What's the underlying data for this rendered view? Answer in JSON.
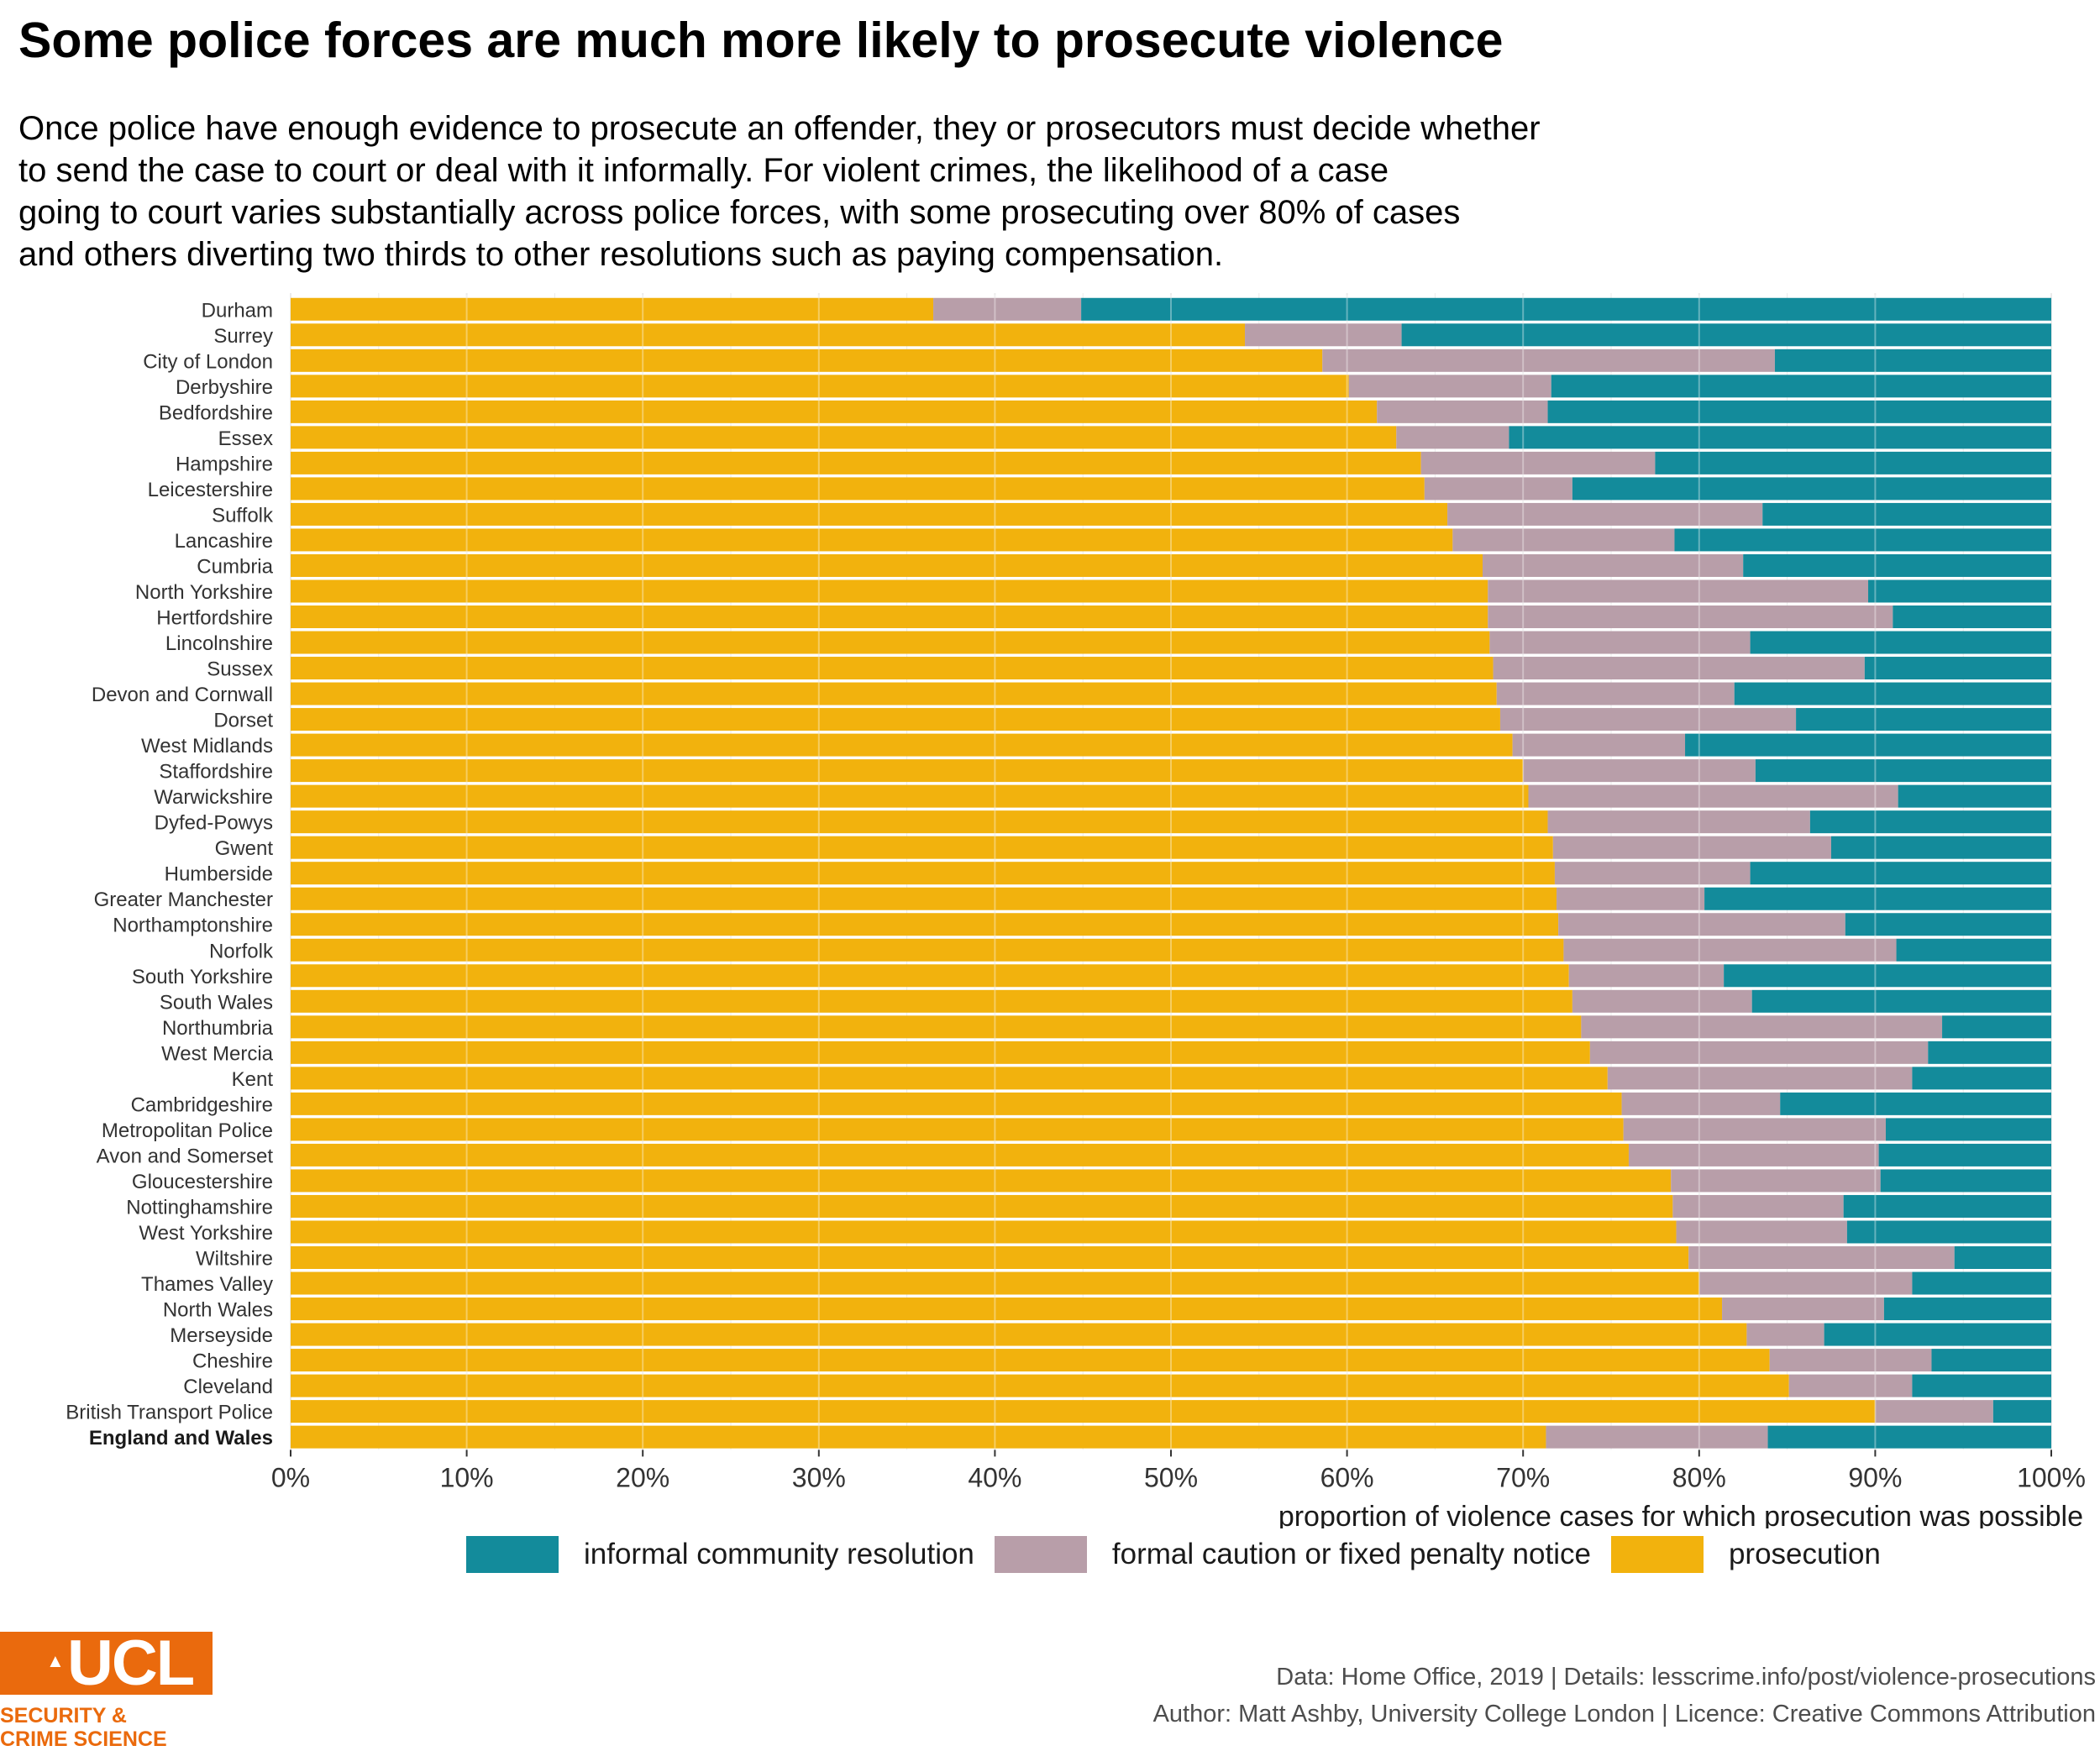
{
  "title": "Some police forces are much more likely to prosecute violence",
  "subtitle_lines": [
    "Once police have enough evidence to prosecute an offender, they or prosecutors must decide whether",
    "to send the case to court or deal with it informally. For violent crimes, the likelihood of a case",
    "going to court varies substantially across police forces, with some prosecuting over 80% of cases",
    "and others diverting two thirds to other resolutions such as paying compensation."
  ],
  "legend": [
    {
      "label": "informal community resolution",
      "color": "#138b9b"
    },
    {
      "label": "formal caution or fixed penalty notice",
      "color": "#b89ea9"
    },
    {
      "label": "prosecution",
      "color": "#f2b20d"
    }
  ],
  "caption": {
    "line1": "Data: Home Office, 2019 |  Details: lesscrime.info/post/violence-prosecutions",
    "line2": "Author: Matt Ashby, University College London |  Licence: Creative Commons Attribution"
  },
  "logo": {
    "text": "UCL",
    "crest_icon": "portico-icon",
    "dept_line1": "SECURITY &",
    "dept_line2": "CRIME SCIENCE",
    "color": "#ea6a0d"
  },
  "chart_data": {
    "type": "bar",
    "orientation": "horizontal",
    "stacked": true,
    "xlabel": "proportion of violence cases for which prosecution was possible",
    "xlim": [
      0,
      100
    ],
    "x_ticks": [
      "0%",
      "10%",
      "20%",
      "30%",
      "40%",
      "50%",
      "60%",
      "70%",
      "80%",
      "90%",
      "100%"
    ],
    "grid": true,
    "legend_position": "bottom",
    "highlight_category": "England and Wales",
    "categories": [
      "Durham",
      "Surrey",
      "City of London",
      "Derbyshire",
      "Bedfordshire",
      "Essex",
      "Hampshire",
      "Leicestershire",
      "Suffolk",
      "Lancashire",
      "Cumbria",
      "North Yorkshire",
      "Hertfordshire",
      "Lincolnshire",
      "Sussex",
      "Devon and Cornwall",
      "Dorset",
      "West Midlands",
      "Staffordshire",
      "Warwickshire",
      "Dyfed-Powys",
      "Gwent",
      "Humberside",
      "Greater Manchester",
      "Northamptonshire",
      "Norfolk",
      "South Yorkshire",
      "South Wales",
      "Northumbria",
      "West Mercia",
      "Kent",
      "Cambridgeshire",
      "Metropolitan Police",
      "Avon and Somerset",
      "Gloucestershire",
      "Nottinghamshire",
      "West Yorkshire",
      "Wiltshire",
      "Thames Valley",
      "North Wales",
      "Merseyside",
      "Cheshire",
      "Cleveland",
      "British Transport Police",
      "England and Wales"
    ],
    "series": [
      {
        "name": "prosecution",
        "color": "#f2b20d",
        "values": [
          36.5,
          54.2,
          58.6,
          60.1,
          61.7,
          62.8,
          64.2,
          64.4,
          65.7,
          66.0,
          67.7,
          68.0,
          68.0,
          68.1,
          68.3,
          68.5,
          68.7,
          69.4,
          70.0,
          70.3,
          71.4,
          71.7,
          71.8,
          71.9,
          72.0,
          72.3,
          72.6,
          72.8,
          73.3,
          73.8,
          74.8,
          75.6,
          75.7,
          76.0,
          78.4,
          78.5,
          78.7,
          79.4,
          80.0,
          81.3,
          82.7,
          84.0,
          85.1,
          90.0,
          71.3
        ]
      },
      {
        "name": "formal caution or fixed penalty notice",
        "color": "#b89ea9",
        "values": [
          8.4,
          8.9,
          25.7,
          11.5,
          9.7,
          6.4,
          13.3,
          8.4,
          17.9,
          12.6,
          14.8,
          21.6,
          23.0,
          14.8,
          21.1,
          13.5,
          16.8,
          9.8,
          13.2,
          21.0,
          14.9,
          15.8,
          11.1,
          8.4,
          16.3,
          18.9,
          8.8,
          10.2,
          20.5,
          19.2,
          17.3,
          9.0,
          14.9,
          14.2,
          11.9,
          9.7,
          9.7,
          15.1,
          12.1,
          9.2,
          4.4,
          9.2,
          7.0,
          6.7,
          12.6
        ]
      },
      {
        "name": "informal community resolution",
        "color": "#138b9b",
        "values": [
          55.1,
          36.9,
          15.7,
          28.4,
          28.6,
          30.8,
          22.5,
          27.2,
          16.4,
          21.4,
          17.5,
          10.4,
          9.0,
          17.1,
          10.6,
          18.0,
          14.5,
          20.8,
          16.8,
          8.7,
          13.7,
          12.5,
          17.1,
          19.7,
          11.7,
          8.8,
          18.6,
          17.0,
          6.2,
          7.0,
          7.9,
          15.4,
          9.4,
          9.8,
          9.7,
          11.8,
          11.6,
          5.5,
          7.9,
          9.5,
          12.9,
          6.8,
          7.9,
          3.3,
          16.1
        ]
      }
    ]
  }
}
